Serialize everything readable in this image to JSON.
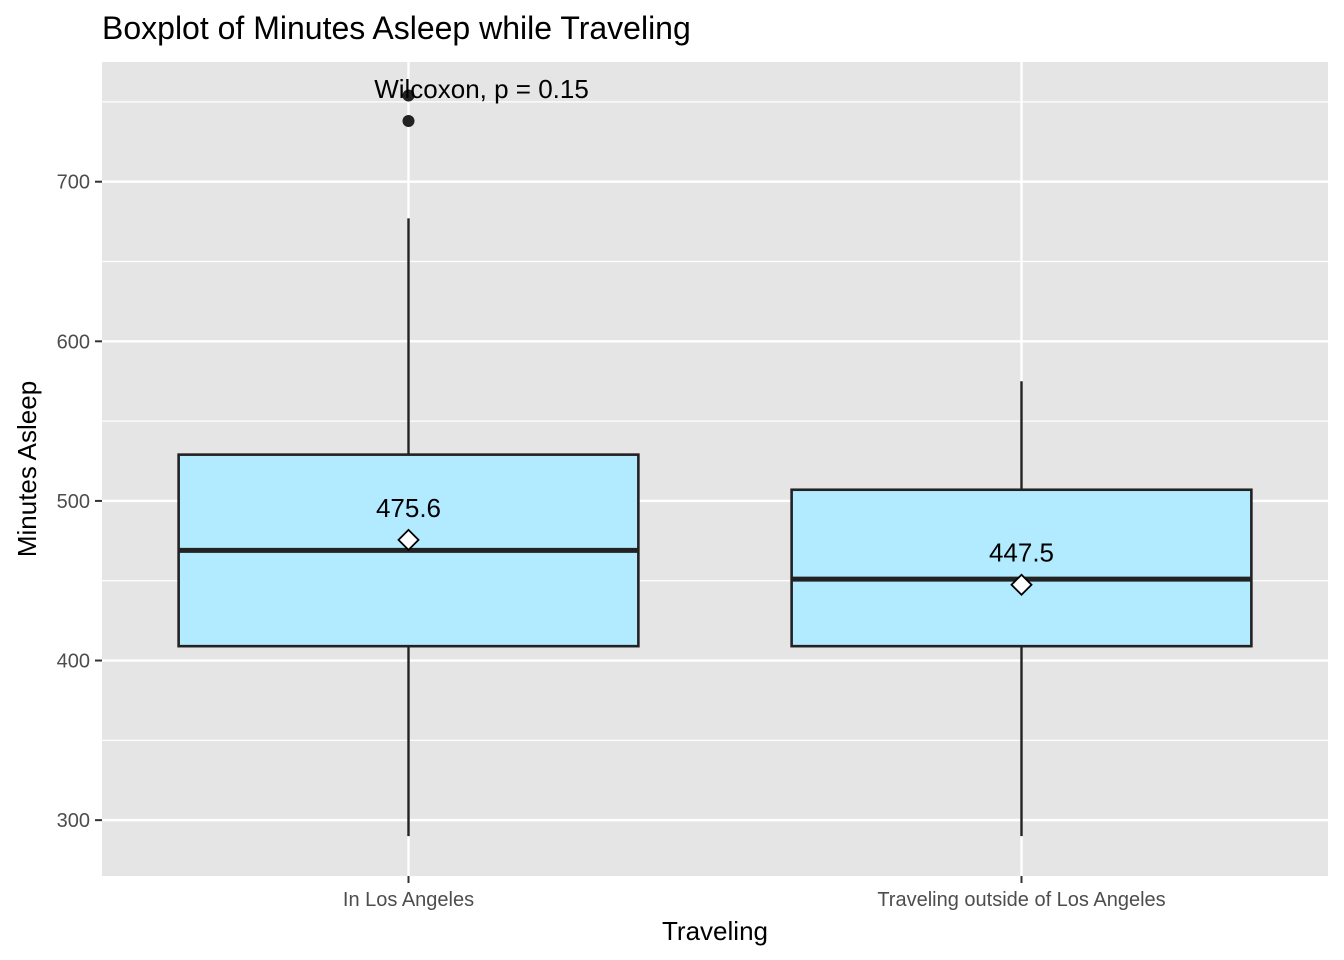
{
  "chart_data": {
    "type": "boxplot",
    "title": "Boxplot of Minutes Asleep while Traveling",
    "xlabel": "Traveling",
    "ylabel": "Minutes Asleep",
    "categories": [
      "In Los Angeles",
      "Traveling outside of Los Angeles"
    ],
    "ylim": [
      265,
      775
    ],
    "yticks": [
      300,
      400,
      500,
      600,
      700
    ],
    "boxes": [
      {
        "category": "In Los Angeles",
        "whisker_low": 290,
        "q1": 409,
        "median": 469,
        "q3": 529,
        "whisker_high": 677,
        "mean": 475.6,
        "mean_label": "475.6",
        "outliers": [
          738,
          754
        ]
      },
      {
        "category": "Traveling outside of Los Angeles",
        "whisker_low": 290,
        "q1": 409,
        "median": 451,
        "q3": 507,
        "whisker_high": 575,
        "mean": 447.5,
        "mean_label": "447.5",
        "outliers": []
      }
    ],
    "annotation": {
      "text": "Wilcoxon, p = 0.15"
    },
    "grid": true,
    "colors": {
      "panel": "#e5e5e5",
      "grid": "#ffffff",
      "box_fill": "#b2ebff",
      "box_line": "#222222",
      "mean_marker": "#ffffff"
    }
  }
}
